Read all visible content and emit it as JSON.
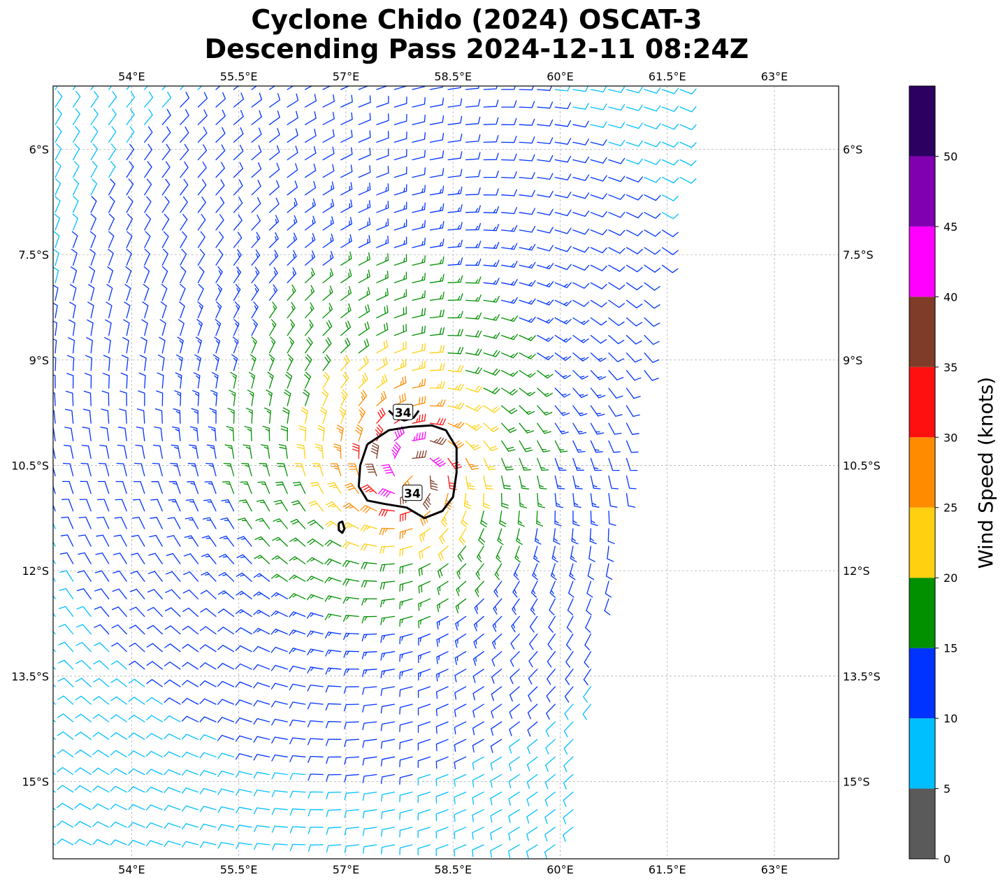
{
  "chart_data": {
    "type": "wind-barb-map",
    "title_line1": "Cyclone Chido (2024) OSCAT-3",
    "title_line2": "Descending Pass 2024-12-11 08:24Z",
    "x_axis": {
      "lon_range": [
        52.9,
        63.9
      ],
      "ticks": [
        54.0,
        55.5,
        57.0,
        58.5,
        60.0,
        61.5,
        63.0
      ],
      "tick_labels": [
        "54°E",
        "55.5°E",
        "57°E",
        "58.5°E",
        "60°E",
        "61.5°E",
        "63°E"
      ]
    },
    "y_axis": {
      "lat_range": [
        -16.1,
        -5.1
      ],
      "ticks": [
        -6.0,
        -7.5,
        -9.0,
        -10.5,
        -12.0,
        -13.5,
        -15.0
      ],
      "tick_labels": [
        "6°S",
        "7.5°S",
        "9°S",
        "10.5°S",
        "12°S",
        "13.5°S",
        "15°S"
      ]
    },
    "grid": true,
    "storm_center": {
      "lon": 57.9,
      "lat": -10.6
    },
    "swath_east_edge": [
      {
        "lat": -5.1,
        "lon": 61.9
      },
      {
        "lat": -7.5,
        "lon": 61.5
      },
      {
        "lat": -9.0,
        "lon": 61.2
      },
      {
        "lat": -10.5,
        "lon": 61.0
      },
      {
        "lat": -12.0,
        "lon": 60.8
      },
      {
        "lat": -13.5,
        "lon": 60.5
      },
      {
        "lat": -15.0,
        "lon": 60.3
      },
      {
        "lat": -16.1,
        "lon": 60.1
      }
    ],
    "contour_34kt": {
      "level_label": "34",
      "main": [
        [
          57.3,
          -10.2
        ],
        [
          57.6,
          -10.0
        ],
        [
          57.9,
          -9.95
        ],
        [
          58.2,
          -9.93
        ],
        [
          58.4,
          -10.0
        ],
        [
          58.55,
          -10.25
        ],
        [
          58.55,
          -10.6
        ],
        [
          58.5,
          -10.95
        ],
        [
          58.35,
          -11.15
        ],
        [
          58.1,
          -11.25
        ],
        [
          57.85,
          -11.1
        ],
        [
          57.55,
          -11.05
        ],
        [
          57.3,
          -11.0
        ],
        [
          57.18,
          -10.8
        ],
        [
          57.2,
          -10.5
        ],
        [
          57.3,
          -10.2
        ]
      ],
      "north_fragment": [
        [
          57.6,
          -9.72
        ],
        [
          57.7,
          -9.82
        ],
        [
          57.82,
          -9.86
        ],
        [
          57.95,
          -9.82
        ],
        [
          58.02,
          -9.72
        ]
      ],
      "west_blob": [
        [
          56.9,
          -11.32
        ],
        [
          56.95,
          -11.3
        ],
        [
          56.98,
          -11.4
        ],
        [
          56.95,
          -11.46
        ],
        [
          56.9,
          -11.42
        ],
        [
          56.9,
          -11.32
        ]
      ],
      "label_positions": [
        [
          57.8,
          -9.75
        ],
        [
          57.93,
          -10.9
        ]
      ]
    },
    "wind_field": {
      "sample_spacing_deg": 0.25,
      "peak_speed_kt": 42,
      "radius_max_wind_deg": 0.4,
      "far_field_background_kt": 6
    },
    "colorbar": {
      "label": "Wind Speed (knots)",
      "bounds": [
        0,
        5,
        10,
        15,
        20,
        25,
        30,
        35,
        40,
        45,
        50,
        55
      ],
      "tick_labels": [
        "0",
        "5",
        "10",
        "15",
        "20",
        "25",
        "30",
        "35",
        "40",
        "45",
        "50"
      ],
      "colors": [
        "#5a5a5a",
        "#00bfff",
        "#0033ff",
        "#009000",
        "#ffd010",
        "#ff8c00",
        "#ff1010",
        "#7f3c28",
        "#ff00ff",
        "#8000b0",
        "#2c0060"
      ]
    }
  }
}
